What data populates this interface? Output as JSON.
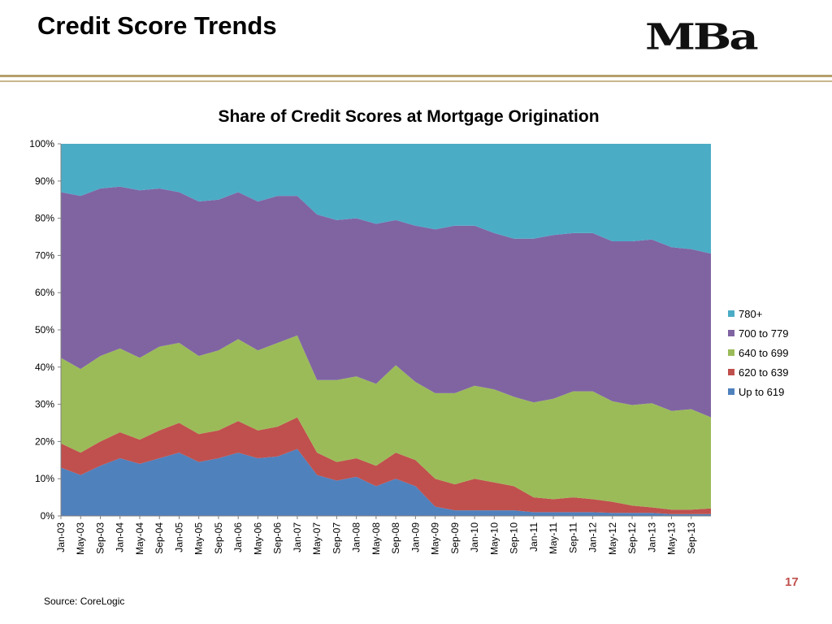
{
  "slide": {
    "title": "Credit Score Trends",
    "logo_text": "MBa",
    "page_number": "17",
    "source": "Source: CoreLogic"
  },
  "colors": {
    "rule": "#b59e6c",
    "page_number": "#c0504d"
  },
  "chart_data": {
    "type": "area",
    "stacked": true,
    "title": "Share of Credit Scores at Mortgage Origination",
    "xlabel": "",
    "ylabel": "",
    "ylim": [
      0,
      100
    ],
    "yticks": [
      "0%",
      "10%",
      "20%",
      "30%",
      "40%",
      "50%",
      "60%",
      "70%",
      "80%",
      "90%",
      "100%"
    ],
    "xticks": [
      "Jan-03",
      "May-03",
      "Sep-03",
      "Jan-04",
      "May-04",
      "Sep-04",
      "Jan-05",
      "May-05",
      "Sep-05",
      "Jan-06",
      "May-06",
      "Sep-06",
      "Jan-07",
      "May-07",
      "Sep-07",
      "Jan-08",
      "May-08",
      "Sep-08",
      "Jan-09",
      "May-09",
      "Sep-09",
      "Jan-10",
      "May-10",
      "Sep-10",
      "Jan-11",
      "May-11",
      "Sep-11",
      "Jan-12",
      "May-12",
      "Sep-12",
      "Jan-13",
      "May-13",
      "Sep-13"
    ],
    "x": [
      "Jan-03",
      "May-03",
      "Sep-03",
      "Jan-04",
      "May-04",
      "Sep-04",
      "Jan-05",
      "May-05",
      "Sep-05",
      "Jan-06",
      "May-06",
      "Sep-06",
      "Jan-07",
      "May-07",
      "Sep-07",
      "Jan-08",
      "May-08",
      "Sep-08",
      "Jan-09",
      "May-09",
      "Sep-09",
      "Jan-10",
      "May-10",
      "Sep-10",
      "Jan-11",
      "May-11",
      "Sep-11",
      "Jan-12",
      "May-12",
      "Sep-12",
      "Jan-13",
      "May-13",
      "Sep-13",
      "Dec-13"
    ],
    "legend_position": "right",
    "grid": false,
    "series": [
      {
        "name": "Up to 619",
        "color": "#4f81bd",
        "values": [
          13,
          11,
          13.5,
          15.5,
          14,
          15.5,
          17,
          14.5,
          15.5,
          17,
          15.5,
          16,
          18,
          11,
          9.5,
          10.5,
          8,
          10,
          8,
          2.5,
          1.5,
          1.5,
          1.5,
          1.5,
          1,
          1,
          1,
          1,
          0.8,
          0.8,
          0.8,
          0.5,
          0.5,
          0.5
        ]
      },
      {
        "name": "620 to 639",
        "color": "#c0504d",
        "values": [
          6.5,
          6,
          6.5,
          7,
          6.5,
          7.5,
          8,
          7.5,
          7.5,
          8.5,
          7.5,
          8,
          8.5,
          6,
          5,
          5,
          5.5,
          7,
          7,
          7.5,
          7,
          8.5,
          7.5,
          6.5,
          4,
          3.5,
          4,
          3.5,
          3,
          2,
          1.5,
          1.2,
          1.2,
          1.5
        ]
      },
      {
        "name": "640 to 699",
        "color": "#9bbb59",
        "values": [
          23,
          22.5,
          23,
          22.5,
          22,
          22.5,
          21.5,
          21,
          21.5,
          22,
          21.5,
          22.5,
          22,
          19.5,
          22,
          22,
          22,
          23.5,
          21,
          23,
          24.5,
          25,
          25,
          24,
          25.5,
          27,
          28.5,
          29,
          27,
          27,
          28,
          26.5,
          27,
          24.5
        ]
      },
      {
        "name": "700 to 779",
        "color": "#8064a2",
        "values": [
          44.5,
          46.5,
          45,
          43.5,
          45,
          42.5,
          40.5,
          41.5,
          40.5,
          39.5,
          40,
          39.5,
          37.5,
          44.5,
          43,
          42.5,
          43,
          39,
          42,
          44,
          45,
          43,
          42,
          42.5,
          44,
          44,
          42.5,
          42.5,
          43,
          44,
          44,
          44,
          43,
          44
        ]
      },
      {
        "name": "780+",
        "color": "#4bacc6",
        "values": [
          13,
          14,
          12,
          11.5,
          12.5,
          12,
          13,
          15.5,
          15,
          13,
          15.5,
          14,
          14,
          19,
          20.5,
          20,
          21.5,
          20.5,
          22,
          23,
          22,
          22,
          24,
          25.5,
          25.5,
          24.5,
          24,
          24,
          26.2,
          26.2,
          25.7,
          27.8,
          28.3,
          29.5
        ]
      }
    ]
  }
}
